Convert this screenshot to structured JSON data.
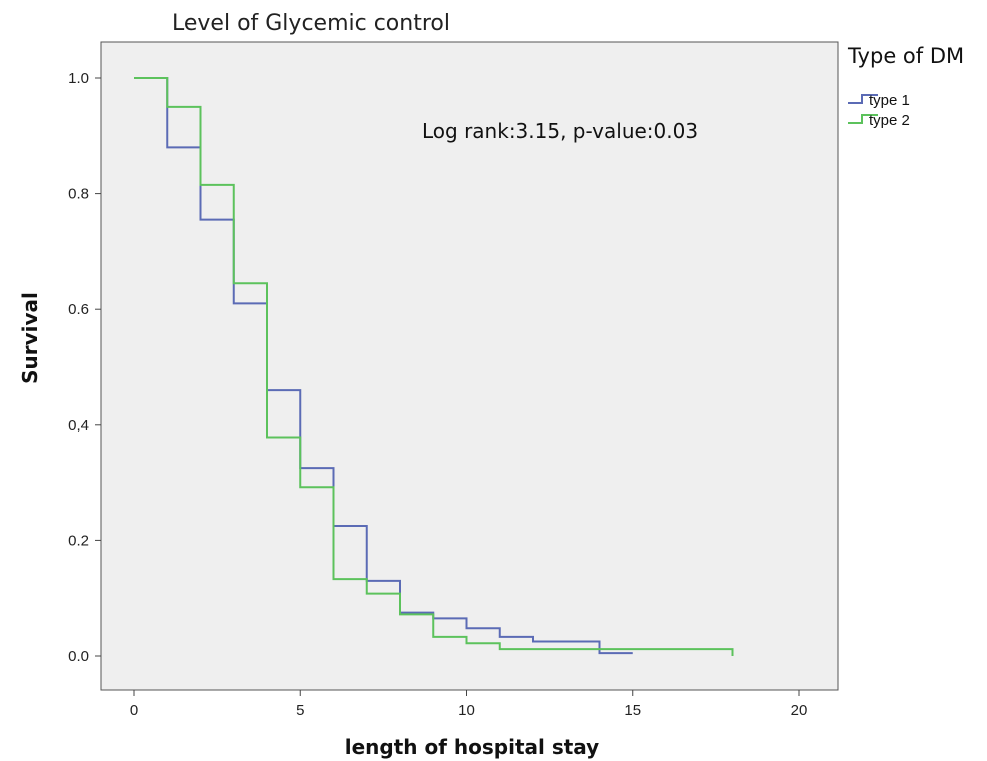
{
  "chart_data": {
    "type": "line",
    "title": "Level of Glycemic control",
    "xlabel": "length of hospital stay",
    "ylabel": "Survival",
    "xlim": [
      0,
      20
    ],
    "ylim": [
      0.0,
      1.0
    ],
    "x_ticks": [
      0,
      5,
      10,
      15,
      20
    ],
    "y_ticks": [
      "0.0",
      "0.2",
      "0,4",
      "0.6",
      "0.8",
      "1.0"
    ],
    "y_tick_values": [
      0.0,
      0.2,
      0.4,
      0.6,
      0.8,
      1.0
    ],
    "grid": false,
    "plot_background": "#efefef",
    "legend": {
      "title": "Type of DM",
      "placement": "right"
    },
    "annotation": "Log rank:3.15, p-value:0.03",
    "step": true,
    "series": [
      {
        "name": "type 1",
        "color": "#5b6bb5",
        "x": [
          0,
          1,
          2,
          3,
          4,
          5,
          6,
          7,
          8,
          9,
          10,
          11,
          12,
          14,
          15
        ],
        "y": [
          1.0,
          0.88,
          0.755,
          0.61,
          0.46,
          0.325,
          0.225,
          0.13,
          0.075,
          0.065,
          0.048,
          0.033,
          0.025,
          0.005,
          0.005
        ]
      },
      {
        "name": "type 2",
        "color": "#5cc25c",
        "x": [
          0,
          1,
          2,
          3,
          4,
          5,
          6,
          7,
          8,
          9,
          10,
          11,
          18
        ],
        "y": [
          1.0,
          0.95,
          0.815,
          0.645,
          0.378,
          0.292,
          0.133,
          0.108,
          0.072,
          0.033,
          0.022,
          0.012,
          0.0
        ]
      }
    ]
  }
}
